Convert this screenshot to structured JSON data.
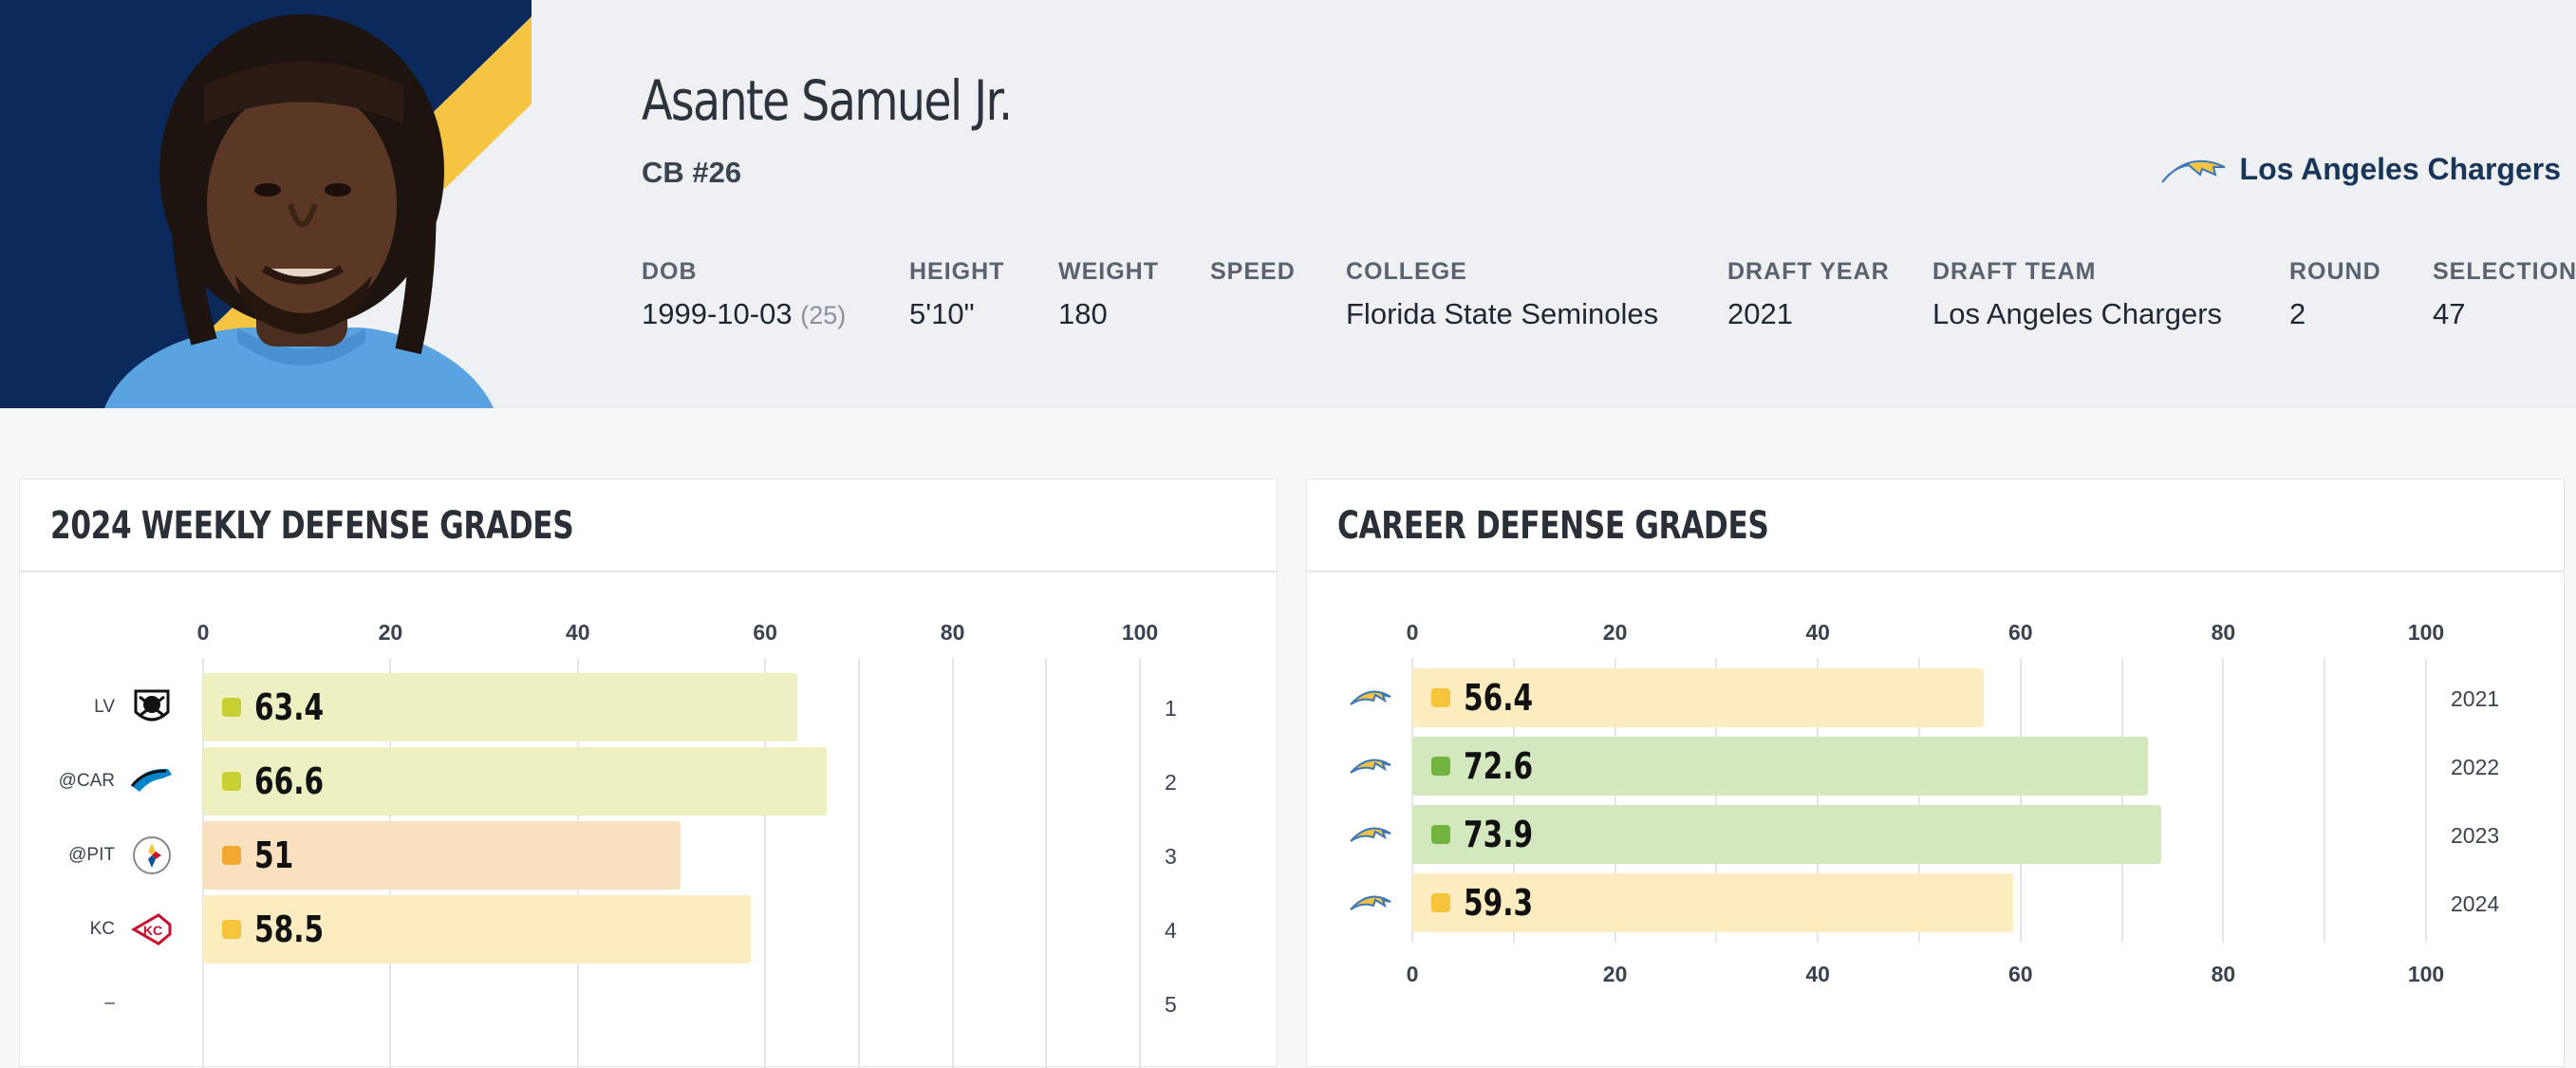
{
  "player": {
    "name": "Asante Samuel Jr.",
    "position": "CB #26",
    "team": "Los Angeles Chargers"
  },
  "bio": [
    {
      "key": "dob",
      "label": "DOB",
      "value": "1999-10-03",
      "extra": "(25)"
    },
    {
      "key": "height",
      "label": "HEIGHT",
      "value": "5'10\""
    },
    {
      "key": "weight",
      "label": "WEIGHT",
      "value": "180"
    },
    {
      "key": "speed",
      "label": "SPEED",
      "value": ""
    },
    {
      "key": "college",
      "label": "COLLEGE",
      "value": "Florida State Seminoles"
    },
    {
      "key": "draft-year",
      "label": "DRAFT YEAR",
      "value": "2021"
    },
    {
      "key": "draft-team",
      "label": "DRAFT TEAM",
      "value": "Los Angeles Chargers"
    },
    {
      "key": "round",
      "label": "ROUND",
      "value": "2"
    },
    {
      "key": "selection",
      "label": "SELECTION",
      "value": "47"
    }
  ],
  "colors": {
    "navy": "#0b2a5b",
    "gold": "#f5c443",
    "grade_green_light": "#eef0c2",
    "grade_green": "#d3e8bf",
    "grade_orange": "#f9e1c0",
    "grade_yellow": "#fcecc0",
    "dot_olive": "#c6d033",
    "dot_green": "#73b33f",
    "dot_orange": "#f2a934",
    "dot_yellow": "#f6c43b"
  },
  "weekly": {
    "title": "2024 WEEKLY DEFENSE GRADES",
    "chart_data": {
      "type": "bar",
      "orientation": "horizontal",
      "xlim": [
        0,
        100
      ],
      "ticks": [
        "0",
        "20",
        "40",
        "60",
        "80",
        "100"
      ],
      "rows": [
        {
          "opponent": "LV",
          "logo": "raiders-logo",
          "week": "1",
          "value": 63.4,
          "label": "63.4",
          "grade": "olive"
        },
        {
          "opponent": "@CAR",
          "logo": "panthers-logo",
          "week": "2",
          "value": 66.6,
          "label": "66.6",
          "grade": "olive"
        },
        {
          "opponent": "@PIT",
          "logo": "steelers-logo",
          "week": "3",
          "value": 51,
          "label": "51",
          "grade": "orange"
        },
        {
          "opponent": "KC",
          "logo": "chiefs-logo",
          "week": "4",
          "value": 58.5,
          "label": "58.5",
          "grade": "yellow"
        },
        {
          "opponent": "–",
          "logo": "",
          "week": "5",
          "value": null,
          "label": "",
          "grade": ""
        }
      ]
    }
  },
  "career": {
    "title": "CAREER DEFENSE GRADES",
    "chart_data": {
      "type": "bar",
      "orientation": "horizontal",
      "xlim": [
        0,
        100
      ],
      "ticks": [
        "0",
        "20",
        "40",
        "60",
        "80",
        "100"
      ],
      "rows": [
        {
          "season": "2021",
          "logo": "chargers-logo",
          "value": 56.4,
          "label": "56.4",
          "grade": "yellow"
        },
        {
          "season": "2022",
          "logo": "chargers-logo",
          "value": 72.6,
          "label": "72.6",
          "grade": "green"
        },
        {
          "season": "2023",
          "logo": "chargers-logo",
          "value": 73.9,
          "label": "73.9",
          "grade": "green"
        },
        {
          "season": "2024",
          "logo": "chargers-logo",
          "value": 59.3,
          "label": "59.3",
          "grade": "yellow"
        }
      ]
    }
  }
}
